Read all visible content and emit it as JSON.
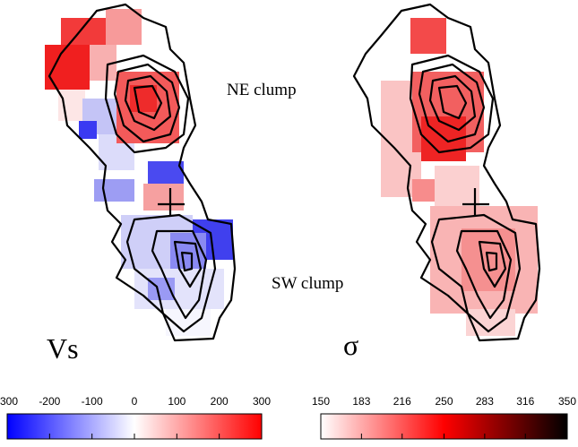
{
  "annotations": {
    "ne": "NE clump",
    "sw": "SW clump"
  },
  "panels": [
    {
      "label": "Vs",
      "colorbar": {
        "ticks": [
          -300,
          -200,
          -100,
          0,
          100,
          200,
          300
        ],
        "colors": [
          "#0000ff",
          "#ffffff",
          "#ff0000"
        ]
      }
    },
    {
      "label": "σ",
      "colorbar": {
        "ticks": [
          150,
          183,
          216,
          250,
          283,
          316,
          350
        ],
        "colors": [
          "#ffffff",
          "#ff0000",
          "#000000"
        ]
      }
    }
  ]
}
